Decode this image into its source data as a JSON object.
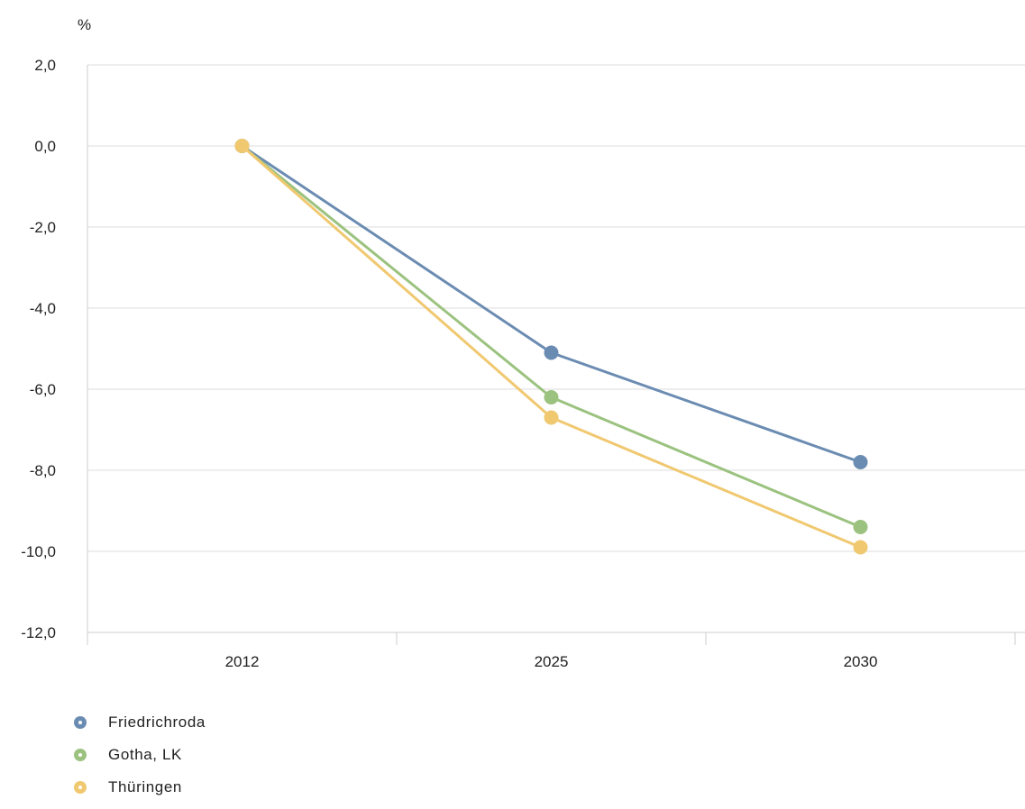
{
  "chart_data": {
    "type": "line",
    "title": "",
    "xlabel": "",
    "ylabel": "%",
    "categories": [
      "2012",
      "2025",
      "2030"
    ],
    "ylim": [
      -12,
      2
    ],
    "yticks": [
      2,
      0,
      -2,
      -4,
      -6,
      -8,
      -10,
      -12
    ],
    "yticklabels": [
      "2,0",
      "0,0",
      "-2,0",
      "-4,0",
      "-6,0",
      "-8,0",
      "-10,0",
      "-12,0"
    ],
    "grid": true,
    "legend_position": "bottom-left",
    "series": [
      {
        "name": "Friedrichroda",
        "color": "#6b8cb2",
        "values": [
          0.0,
          -5.1,
          -7.8
        ]
      },
      {
        "name": "Gotha, LK",
        "color": "#9bc27f",
        "values": [
          0.0,
          -6.2,
          -9.4
        ]
      },
      {
        "name": "Thüringen",
        "color": "#f0c870",
        "values": [
          0.0,
          -6.7,
          -9.9
        ]
      }
    ]
  }
}
